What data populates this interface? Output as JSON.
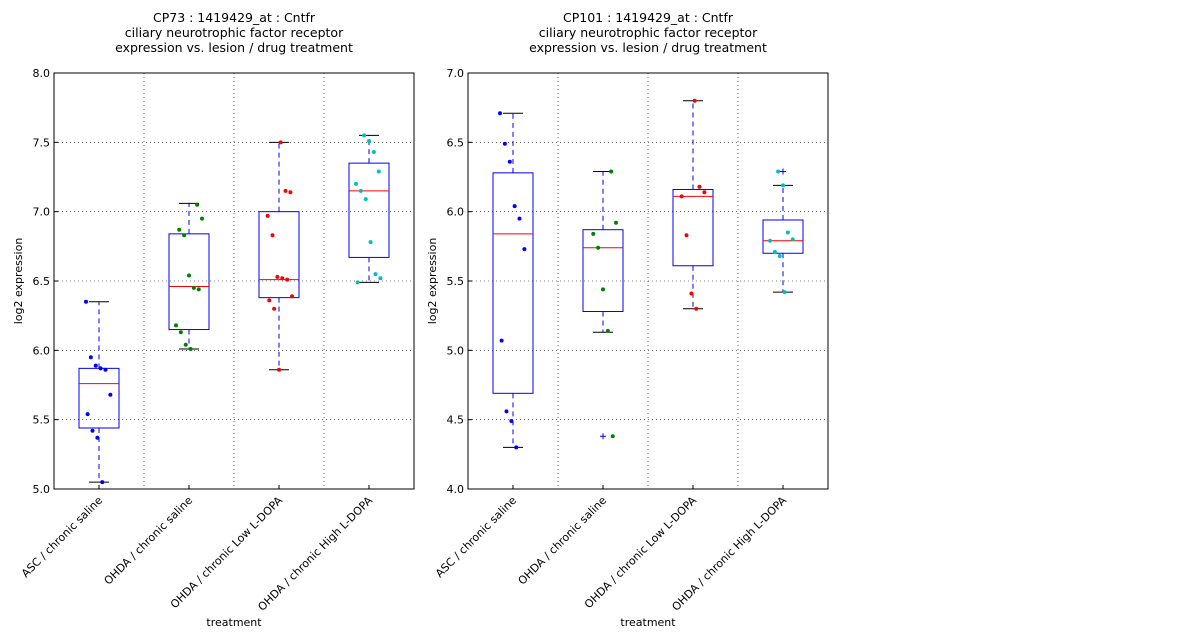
{
  "chart_data": [
    {
      "type": "box",
      "title": [
        "CP73 : 1419429_at : Cntfr",
        "ciliary neurotrophic factor receptor",
        "expression vs. lesion / drug treatment"
      ],
      "xlabel": "treatment",
      "ylabel": "log2 expression",
      "categories": [
        "ASC / chronic saline",
        "OHDA / chronic saline",
        "OHDA / chronic Low L-DOPA",
        "OHDA / chronic High L-DOPA"
      ],
      "ylim": [
        5,
        8
      ],
      "yticks": [
        {
          "value": 5,
          "label": "5.0"
        },
        5.5,
        {
          "value": 6,
          "label": "6.0"
        },
        6.5,
        {
          "value": 7,
          "label": "7.0"
        },
        7.5,
        {
          "value": 8,
          "label": "8.0"
        }
      ],
      "grid": true,
      "boxes": [
        {
          "whislo": 5.05,
          "q1": 5.44,
          "med": 5.76,
          "q3": 5.87,
          "whishi": 6.35,
          "fliers": []
        },
        {
          "whislo": 6.01,
          "q1": 6.15,
          "med": 6.46,
          "q3": 6.84,
          "whishi": 7.06,
          "fliers": []
        },
        {
          "whislo": 5.86,
          "q1": 6.38,
          "med": 6.51,
          "q3": 7.0,
          "whishi": 7.5,
          "fliers": []
        },
        {
          "whislo": 6.49,
          "q1": 6.67,
          "med": 7.15,
          "q3": 7.35,
          "whishi": 7.55,
          "fliers": []
        }
      ],
      "points": [
        {
          "color": "#0000ff",
          "values": [
            6.35,
            5.95,
            5.89,
            5.87,
            5.86,
            5.68,
            5.54,
            5.42,
            5.37,
            5.05
          ]
        },
        {
          "color": "#008000",
          "values": [
            7.05,
            6.95,
            6.87,
            6.83,
            6.54,
            6.45,
            6.44,
            6.18,
            6.13,
            6.04,
            6.01
          ]
        },
        {
          "color": "#ff0000",
          "values": [
            7.5,
            7.15,
            7.14,
            6.97,
            6.83,
            6.53,
            6.52,
            6.51,
            6.39,
            6.36,
            6.3,
            5.86
          ]
        },
        {
          "color": "#00bfbf",
          "values": [
            7.55,
            7.51,
            7.43,
            7.29,
            7.2,
            7.15,
            7.09,
            6.78,
            6.55,
            6.52,
            6.49
          ]
        }
      ]
    },
    {
      "type": "box",
      "title": [
        "CP101 : 1419429_at : Cntfr",
        "ciliary neurotrophic factor receptor",
        "expression vs. lesion / drug treatment"
      ],
      "xlabel": "treatment",
      "ylabel": "log2 expression",
      "categories": [
        "ASC / chronic saline",
        "OHDA / chronic saline",
        "OHDA / chronic Low L-DOPA",
        "OHDA / chronic High L-DOPA"
      ],
      "ylim": [
        4,
        7
      ],
      "yticks": [
        {
          "value": 4,
          "label": "4.0"
        },
        4.5,
        {
          "value": 5,
          "label": "5.0"
        },
        5.5,
        {
          "value": 6,
          "label": "6.0"
        },
        6.5,
        {
          "value": 7,
          "label": "7.0"
        }
      ],
      "grid": true,
      "boxes": [
        {
          "whislo": 4.3,
          "q1": 4.69,
          "med": 5.84,
          "q3": 6.28,
          "whishi": 6.71,
          "fliers": []
        },
        {
          "whislo": 5.13,
          "q1": 5.28,
          "med": 5.74,
          "q3": 5.87,
          "whishi": 6.29,
          "fliers": [
            4.38
          ]
        },
        {
          "whislo": 5.3,
          "q1": 5.61,
          "med": 6.11,
          "q3": 6.16,
          "whishi": 6.8,
          "fliers": []
        },
        {
          "whislo": 5.42,
          "q1": 5.7,
          "med": 5.79,
          "q3": 5.94,
          "whishi": 6.19,
          "fliers": [
            6.29
          ]
        }
      ],
      "points": [
        {
          "color": "#0000ff",
          "values": [
            6.71,
            6.49,
            6.36,
            6.04,
            5.95,
            5.73,
            5.07,
            4.56,
            4.49,
            4.3
          ]
        },
        {
          "color": "#008000",
          "values": [
            6.29,
            5.92,
            5.84,
            5.74,
            5.44,
            5.14,
            4.38
          ]
        },
        {
          "color": "#ff0000",
          "values": [
            6.8,
            6.18,
            6.14,
            6.11,
            5.83,
            5.41,
            5.3
          ]
        },
        {
          "color": "#00bfbf",
          "values": [
            6.29,
            6.19,
            5.85,
            5.8,
            5.79,
            5.71,
            5.68,
            5.42
          ]
        }
      ]
    }
  ]
}
